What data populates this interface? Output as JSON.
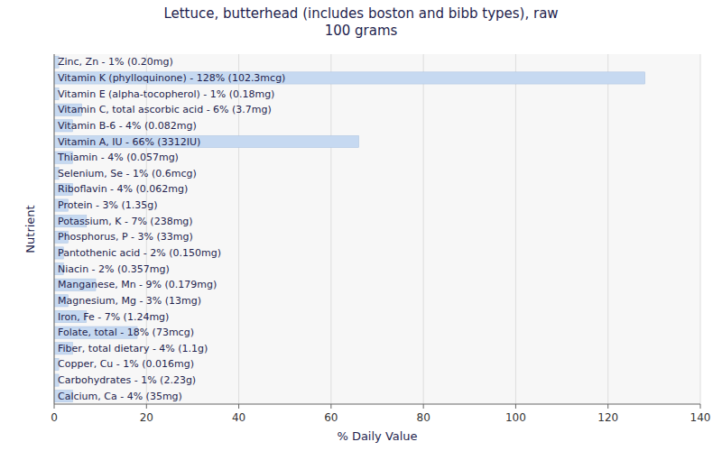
{
  "chart_data": {
    "type": "bar",
    "orientation": "horizontal",
    "title": "Lettuce, butterhead (includes boston and bibb types), raw\n100 grams",
    "xlabel": "% Daily Value",
    "ylabel": "Nutrient",
    "categories": [
      "Calcium, Ca - 4% (35mg)",
      "Carbohydrates - 1% (2.23g)",
      "Copper, Cu - 1% (0.016mg)",
      "Fiber, total dietary - 4% (1.1g)",
      "Folate, total - 18% (73mcg)",
      "Iron, Fe - 7% (1.24mg)",
      "Magnesium, Mg - 3% (13mg)",
      "Manganese, Mn - 9% (0.179mg)",
      "Niacin - 2% (0.357mg)",
      "Pantothenic acid - 2% (0.150mg)",
      "Phosphorus, P - 3% (33mg)",
      "Potassium, K - 7% (238mg)",
      "Protein - 3% (1.35g)",
      "Riboflavin - 4% (0.062mg)",
      "Selenium, Se - 1% (0.6mcg)",
      "Thiamin - 4% (0.057mg)",
      "Vitamin A, IU - 66% (3312IU)",
      "Vitamin B-6 - 4% (0.082mg)",
      "Vitamin C, total ascorbic acid - 6% (3.7mg)",
      "Vitamin E (alpha-tocopherol) - 1% (0.18mg)",
      "Vitamin K (phylloquinone) - 128% (102.3mcg)",
      "Zinc, Zn - 1% (0.20mg)"
    ],
    "values": [
      4,
      1,
      1,
      4,
      18,
      7,
      3,
      9,
      2,
      2,
      3,
      7,
      3,
      4,
      1,
      4,
      66,
      4,
      6,
      1,
      128,
      1
    ],
    "color": "#c6d9f1",
    "xlim": [
      0,
      140
    ],
    "xticks": [
      0,
      20,
      40,
      60,
      80,
      100,
      120,
      140
    ],
    "grid": true
  }
}
